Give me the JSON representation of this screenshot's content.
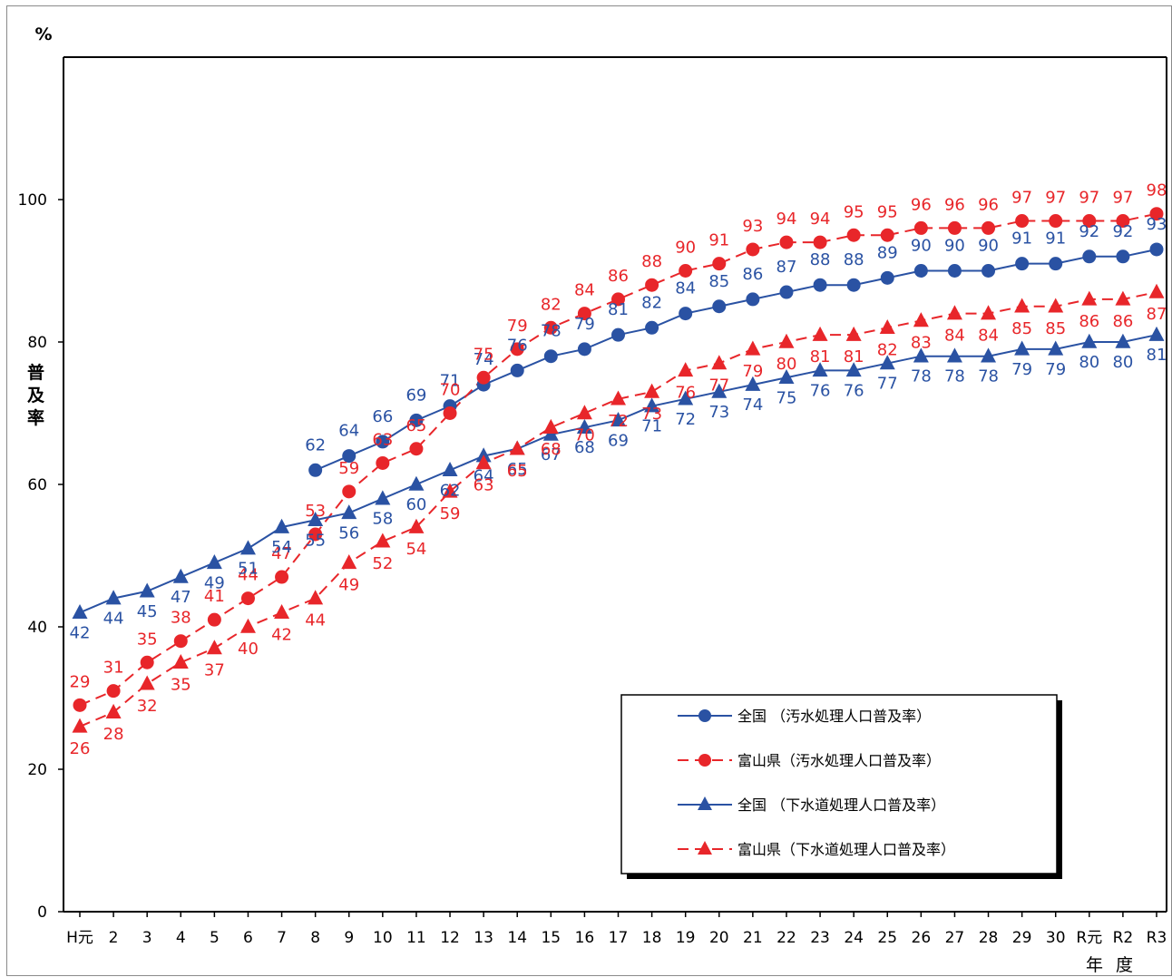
{
  "chart_data": {
    "type": "line",
    "y_unit": "%",
    "ylabel": "普及率",
    "xlabel": "年 度",
    "ylim": [
      0,
      120
    ],
    "yticks": [
      0,
      20,
      40,
      60,
      80,
      100
    ],
    "grid": false,
    "legend_position": "bottom-right",
    "categories": [
      "H元",
      "2",
      "3",
      "4",
      "5",
      "6",
      "7",
      "8",
      "9",
      "10",
      "11",
      "12",
      "13",
      "14",
      "15",
      "16",
      "17",
      "18",
      "19",
      "20",
      "21",
      "22",
      "23",
      "24",
      "25",
      "26",
      "27",
      "28",
      "29",
      "30",
      "R元",
      "R2",
      "R3"
    ],
    "series": [
      {
        "name": "全国 （汚水処理人口普及率）",
        "color": "#2a52a3",
        "dashed": false,
        "marker": "circle",
        "values": [
          null,
          null,
          null,
          null,
          null,
          null,
          null,
          62,
          64,
          66,
          69,
          71,
          74,
          76,
          78,
          79,
          81,
          82,
          84,
          85,
          86,
          87,
          88,
          88,
          89,
          90,
          90,
          90,
          91,
          91,
          92,
          92,
          93
        ]
      },
      {
        "name": "富山県（汚水処理人口普及率）",
        "color": "#e8262a",
        "dashed": true,
        "marker": "circle",
        "values": [
          29,
          31,
          35,
          38,
          41,
          44,
          47,
          53,
          59,
          63,
          65,
          70,
          75,
          79,
          82,
          84,
          86,
          88,
          90,
          91,
          93,
          94,
          94,
          95,
          95,
          96,
          96,
          96,
          97,
          97,
          97,
          97,
          98
        ]
      },
      {
        "name": "全国 （下水道処理人口普及率）",
        "color": "#2a52a3",
        "dashed": false,
        "marker": "triangle",
        "values": [
          42,
          44,
          45,
          47,
          49,
          51,
          54,
          55,
          56,
          58,
          60,
          62,
          64,
          65,
          67,
          68,
          69,
          71,
          72,
          73,
          74,
          75,
          76,
          76,
          77,
          78,
          78,
          78,
          79,
          79,
          80,
          80,
          81
        ]
      },
      {
        "name": "富山県（下水道処理人口普及率）",
        "color": "#e8262a",
        "dashed": true,
        "marker": "triangle",
        "values": [
          26,
          28,
          32,
          35,
          37,
          40,
          42,
          44,
          49,
          52,
          54,
          59,
          63,
          65,
          68,
          70,
          72,
          73,
          76,
          77,
          79,
          80,
          81,
          81,
          82,
          83,
          84,
          84,
          85,
          85,
          86,
          86,
          87
        ]
      }
    ]
  }
}
